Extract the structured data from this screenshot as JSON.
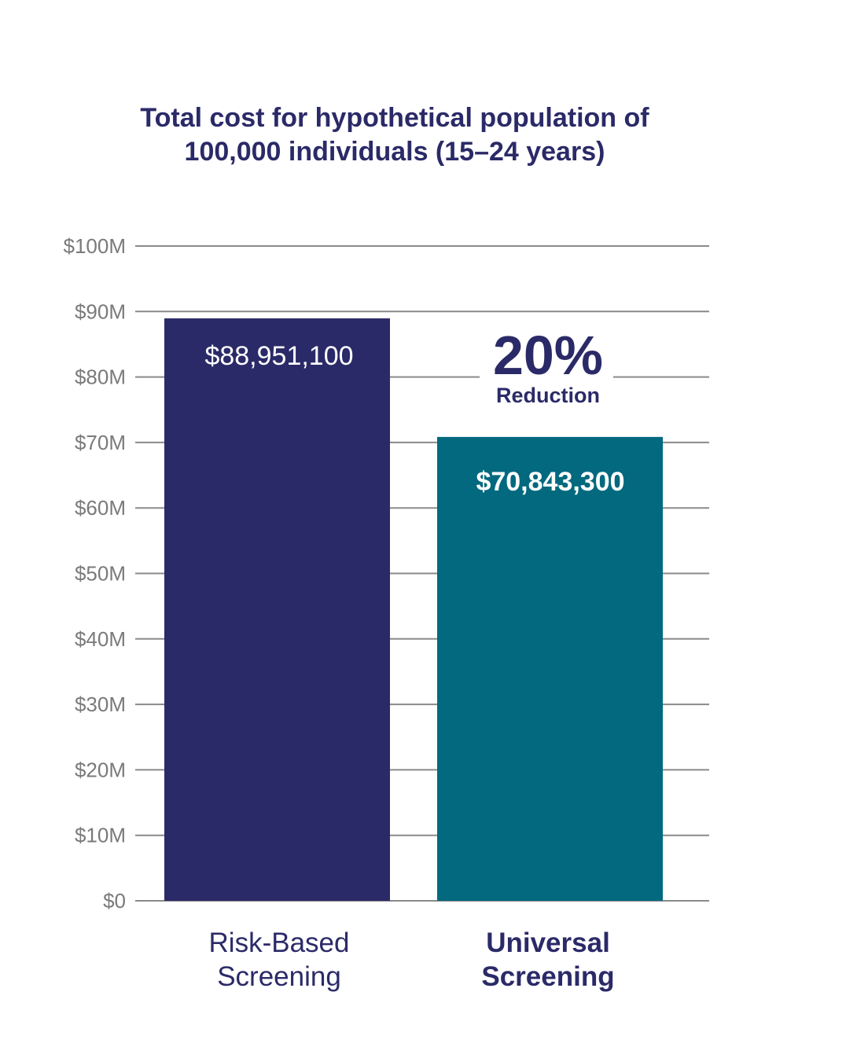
{
  "chart_data": {
    "type": "bar",
    "title": [
      "Total cost for hypothetical population of",
      "100,000 individuals (15–24 years)"
    ],
    "xlabel": "",
    "ylabel": "",
    "categories": [
      [
        "Risk-Based",
        "Screening"
      ],
      [
        "Universal",
        "Screening"
      ]
    ],
    "values": [
      88951100,
      70843300
    ],
    "data_labels": [
      "$88,951,100",
      "$70,843,300"
    ],
    "colors": [
      "#2b2a68",
      "#02697e"
    ],
    "ylim": [
      0,
      100000000
    ],
    "yticks": [
      0,
      10000000,
      20000000,
      30000000,
      40000000,
      50000000,
      60000000,
      70000000,
      80000000,
      90000000,
      100000000
    ],
    "ytick_labels": [
      "$0",
      "$10M",
      "$20M",
      "$30M",
      "$40M",
      "$50M",
      "$60M",
      "$70M",
      "$80M",
      "$90M",
      "$100M"
    ],
    "grid": true,
    "annotation": {
      "value": "20%",
      "label": "Reduction"
    }
  }
}
